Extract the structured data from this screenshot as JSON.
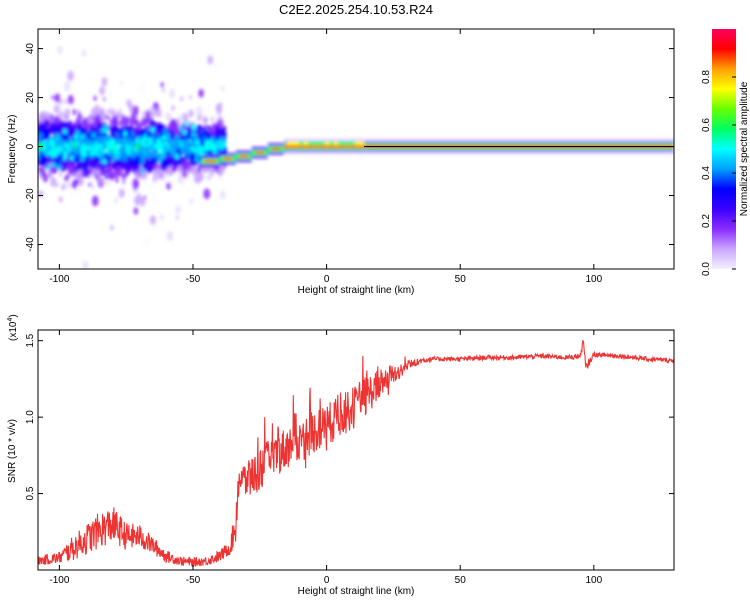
{
  "title": "C2E2.2025.254.10.53.R24",
  "chart_data": [
    {
      "type": "heatmap",
      "name": "spectrogram",
      "xlabel": "Height of straight line (km)",
      "ylabel": "Frequency (Hz)",
      "xlim": [
        -108,
        130
      ],
      "ylim": [
        -50,
        48
      ],
      "xticks": [
        -100,
        -50,
        0,
        50,
        100
      ],
      "yticks": [
        -40,
        -20,
        0,
        20,
        40
      ],
      "colorbar": {
        "label": "Normalized spectral amplitude",
        "range": [
          0,
          1
        ],
        "ticks": [
          "0.0",
          "0.2",
          "0.4",
          "0.6",
          "0.8"
        ],
        "tick_values": [
          0,
          0.2,
          0.4,
          0.6,
          0.8
        ],
        "colormap": [
          "#f4f0ff",
          "#c9a6ff",
          "#8a2cff",
          "#3a00ff",
          "#0000ff",
          "#00a0ff",
          "#00ffff",
          "#00ff60",
          "#66ff00",
          "#ffff00",
          "#ffa000",
          "#ff0000",
          "#ff0060"
        ]
      },
      "description_series": [
        {
          "segment": "scattered",
          "x_range": [
            -108,
            -40
          ],
          "freq_spread_hz": 30
        },
        {
          "segment": "stepped",
          "steps": [
            [
              -47,
              -40,
              -6
            ],
            [
              -40,
              -34,
              -5
            ],
            [
              -34,
              -28,
              -4
            ],
            [
              -28,
              -22,
              -2.5
            ],
            [
              -22,
              -16,
              -1
            ]
          ]
        },
        {
          "segment": "narrowband",
          "x_range": [
            -16,
            130
          ],
          "freq_hz": 0
        }
      ]
    },
    {
      "type": "line",
      "name": "snr",
      "xlabel": "Height of straight line (km)",
      "ylabel": "SNR (10 * v/v)",
      "y_multiplier": "(x10",
      "y_multiplier_exp": "4",
      "y_multiplier_close": ")",
      "xlim": [
        -108,
        130
      ],
      "ylim": [
        0,
        1.57
      ],
      "xticks": [
        -100,
        -50,
        0,
        50,
        100
      ],
      "yticks": [
        0.5,
        1.0,
        1.5
      ],
      "ytick_labels": [
        "0.5",
        "1.0",
        "1.5"
      ],
      "series": [
        {
          "name": "SNR",
          "color": "#ee3333",
          "x": [
            -108,
            -100,
            -95,
            -90,
            -85,
            -80,
            -75,
            -70,
            -65,
            -60,
            -55,
            -50,
            -45,
            -40,
            -36,
            -34,
            -33,
            -30,
            -25,
            -20,
            -15,
            -10,
            -5,
            0,
            5,
            10,
            15,
            20,
            25,
            30,
            35,
            40,
            50,
            60,
            70,
            80,
            90,
            95,
            96,
            97,
            100,
            110,
            120,
            130
          ],
          "y": [
            0.06,
            0.08,
            0.14,
            0.2,
            0.26,
            0.3,
            0.22,
            0.22,
            0.16,
            0.09,
            0.06,
            0.05,
            0.06,
            0.09,
            0.15,
            0.3,
            0.6,
            0.58,
            0.66,
            0.74,
            0.8,
            0.84,
            0.9,
            0.95,
            1.0,
            1.06,
            1.14,
            1.22,
            1.28,
            1.33,
            1.37,
            1.38,
            1.38,
            1.39,
            1.39,
            1.4,
            1.39,
            1.4,
            1.5,
            1.32,
            1.41,
            1.4,
            1.38,
            1.37
          ],
          "noise_amplitude": [
            0.03,
            0.04,
            0.08,
            0.1,
            0.12,
            0.12,
            0.09,
            0.08,
            0.06,
            0.04,
            0.03,
            0.03,
            0.03,
            0.04,
            0.05,
            0.14,
            0.14,
            0.12,
            0.14,
            0.14,
            0.14,
            0.14,
            0.14,
            0.14,
            0.14,
            0.14,
            0.13,
            0.1,
            0.07,
            0.04,
            0.02,
            0.015,
            0.015,
            0.015,
            0.015,
            0.015,
            0.015,
            0.02,
            0.03,
            0.03,
            0.015,
            0.015,
            0.015,
            0.015
          ]
        }
      ]
    }
  ]
}
